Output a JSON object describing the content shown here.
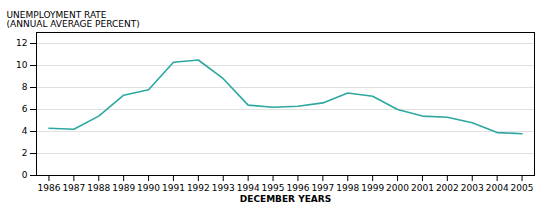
{
  "chart_data": {
    "type": "line",
    "x": [
      1986,
      1987,
      1988,
      1989,
      1990,
      1991,
      1992,
      1993,
      1994,
      1995,
      1996,
      1997,
      1998,
      1999,
      2000,
      2001,
      2002,
      2003,
      2004,
      2005
    ],
    "values": [
      4.3,
      4.2,
      5.4,
      7.3,
      7.8,
      10.3,
      10.5,
      8.8,
      6.4,
      6.2,
      6.3,
      6.6,
      7.5,
      7.2,
      6.0,
      5.4,
      5.3,
      4.8,
      3.9,
      3.8
    ],
    "color": "#2ca8a0",
    "ylabel": "UNEMPLOYMENT RATE\n(ANNUAL AVERAGE PERCENT)",
    "xlabel": "DECEMBER YEARS",
    "xlim": [
      1985.5,
      2005.5
    ],
    "xticks": [
      1986,
      1987,
      1988,
      1989,
      1990,
      1991,
      1992,
      1993,
      1994,
      1995,
      1996,
      1997,
      1998,
      1999,
      2000,
      2001,
      2002,
      2003,
      2004,
      2005
    ],
    "ylim": [
      0,
      13
    ],
    "yticks": [
      0,
      2,
      4,
      6,
      8,
      10,
      12
    ],
    "grid": true
  }
}
